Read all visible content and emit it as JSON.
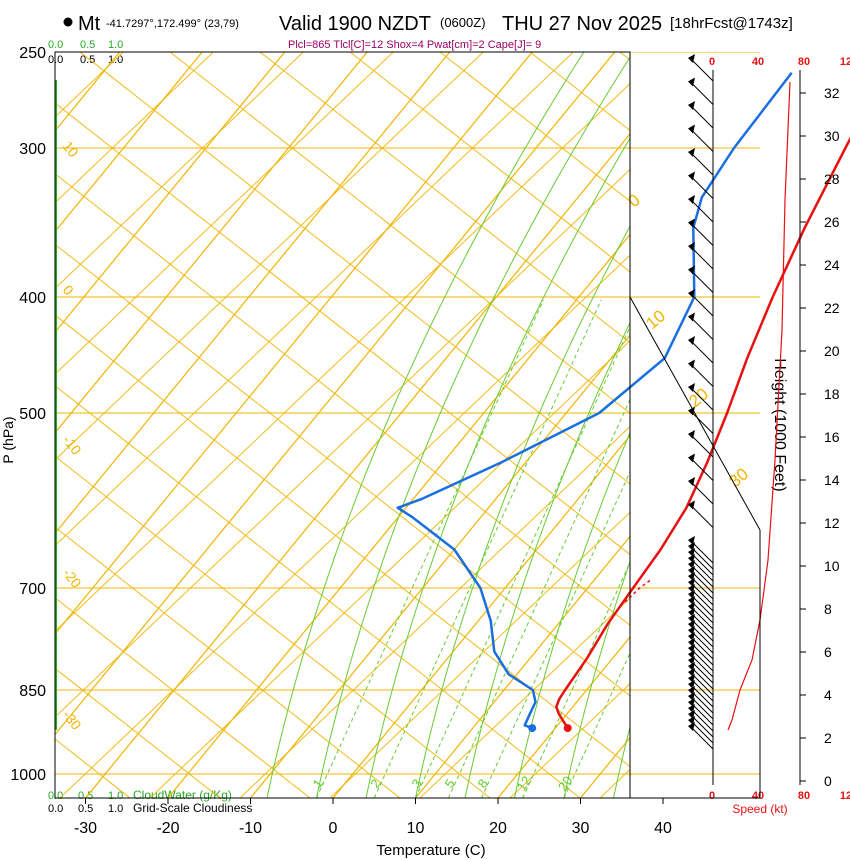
{
  "header": {
    "station_name": "Mt",
    "station_coords": "-41.7297°,172.499° (23,79)",
    "valid_time": "Valid 1900 NZDT",
    "utc_time": "(0600Z)",
    "date": "THU 27 Nov 2025",
    "forecast_info": "[18hrFcst@1743z]",
    "indices": "Plcl=865 Tlcl[C]=12 Shox=4 Pwat[cm]=2 Cape[J]= 9"
  },
  "colors": {
    "isotherm": "#f0b400",
    "mixing_ratio": "#66cc33",
    "temperature": "#e81010",
    "dewpoint": "#1a6fe0",
    "cloud_water": "#22aa22",
    "index_text": "#990066",
    "speed_axis": "#e81010",
    "frame": "#000000"
  },
  "chart_data": {
    "type": "line",
    "title": "Valid 1900 NZDT (0600Z) THU 27 Nov 2025",
    "xlabel": "Temperature (C)",
    "ylabel": "P (hPa)",
    "xlim": [
      -35,
      45
    ],
    "ylim": [
      1050,
      250
    ],
    "x_ticks": [
      -30,
      -20,
      -10,
      0,
      10,
      20,
      30,
      40
    ],
    "pressure_ticks": [
      250,
      300,
      400,
      500,
      700,
      850,
      1000
    ],
    "height_label": "Height (1000 Feet)",
    "height_ticks": [
      0,
      2,
      4,
      6,
      8,
      10,
      12,
      14,
      16,
      18,
      20,
      22,
      24,
      26,
      28,
      30,
      32
    ],
    "isotherm_labels": [
      "-30",
      "-20",
      "-10",
      "0",
      "10",
      "20",
      "30"
    ],
    "mixing_ratio_labels": [
      "1",
      "2",
      "3",
      "5",
      "8",
      "12",
      "20"
    ],
    "cloud_scale_labels": [
      "0.0",
      "0.5",
      "1.0"
    ],
    "cloud_water_label": "CloudWater (g/Kg)",
    "cloudiness_label": "Grid-Scale Cloudiness",
    "speed_label": "Speed (kt)",
    "speed_ticks": [
      "0",
      "40",
      "80",
      "12"
    ],
    "series": [
      {
        "name": "Temperature",
        "points": [
          [
            21.5,
            915
          ],
          [
            20.5,
            905
          ],
          [
            19.0,
            890
          ],
          [
            18.0,
            878
          ],
          [
            17.6,
            865
          ],
          [
            17.4,
            850
          ],
          [
            16.9,
            800
          ],
          [
            16.0,
            750
          ],
          [
            15.5,
            700
          ],
          [
            15.0,
            650
          ],
          [
            14.0,
            600
          ],
          [
            12.0,
            550
          ],
          [
            9.5,
            500
          ],
          [
            6.5,
            450
          ],
          [
            3.5,
            400
          ],
          [
            0.5,
            350
          ],
          [
            -2.5,
            300
          ],
          [
            -5.2,
            260
          ]
        ]
      },
      {
        "name": "Dewpoint",
        "points": [
          [
            17.2,
            915
          ],
          [
            16.0,
            910
          ],
          [
            15.5,
            890
          ],
          [
            15.0,
            870
          ],
          [
            13.5,
            850
          ],
          [
            9.0,
            825
          ],
          [
            5.0,
            790
          ],
          [
            1.5,
            745
          ],
          [
            -3.0,
            700
          ],
          [
            -10.0,
            650
          ],
          [
            -18.5,
            610
          ],
          [
            -21.0,
            600
          ],
          [
            -19.0,
            590
          ],
          [
            -13.0,
            550
          ],
          [
            -6.0,
            500
          ],
          [
            -3.5,
            450
          ],
          [
            -6.0,
            400
          ],
          [
            -13.0,
            350
          ],
          [
            -15.0,
            330
          ],
          [
            -16.0,
            300
          ],
          [
            -16.5,
            260
          ]
        ]
      }
    ],
    "markers": [
      {
        "name": "surface-temperature",
        "t": 21.5,
        "p": 915
      },
      {
        "name": "surface-dewpoint",
        "t": 17.2,
        "p": 915
      }
    ]
  }
}
